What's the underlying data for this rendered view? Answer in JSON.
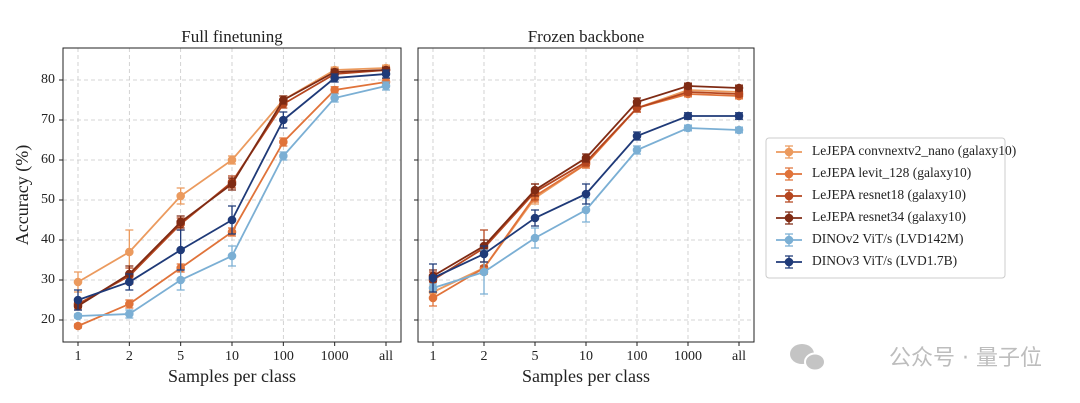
{
  "chart_data": [
    {
      "type": "line",
      "title": "Full finetuning",
      "xlabel": "Samples per class",
      "ylabel": "Accuracy (%)",
      "categories": [
        "1",
        "2",
        "5",
        "10",
        "100",
        "1000",
        "all"
      ],
      "ylim": [
        14.5,
        88
      ],
      "yticks": [
        20,
        30,
        40,
        50,
        60,
        70,
        80
      ],
      "grid": true,
      "series": [
        {
          "name": "LeJEPA convnextv2_nano (galaxy10)",
          "color": "#eb9a5e",
          "values": [
            29.5,
            37,
            51,
            60,
            75,
            82.5,
            83
          ],
          "errors": [
            2.5,
            5.5,
            2,
            1,
            1,
            0.7,
            0.7
          ]
        },
        {
          "name": "LeJEPA levit_128 (galaxy10)",
          "color": "#e0733a",
          "values": [
            18.5,
            24,
            33,
            42,
            64.5,
            77.5,
            79.5
          ],
          "errors": [
            0.5,
            1,
            1,
            1,
            1,
            0.8,
            0.8
          ]
        },
        {
          "name": "LeJEPA resnet18 (galaxy10)",
          "color": "#b5461f",
          "values": [
            24,
            31,
            44,
            54.5,
            74,
            81.5,
            82.5
          ],
          "errors": [
            1,
            2,
            1.5,
            1.5,
            1,
            0.7,
            0.7
          ]
        },
        {
          "name": "LeJEPA resnet34 (galaxy10)",
          "color": "#7f2b14",
          "values": [
            23.5,
            31.5,
            44.5,
            54,
            75,
            82,
            82.5
          ],
          "errors": [
            1,
            2,
            1.5,
            1.5,
            1,
            0.7,
            0.7
          ]
        },
        {
          "name": "DINOv2 ViT/s (LVD142M)",
          "color": "#7bafd4",
          "values": [
            21,
            21.5,
            30,
            36,
            61,
            75.5,
            78.5
          ],
          "errors": [
            0.5,
            1,
            2.5,
            2.5,
            1,
            1,
            1
          ]
        },
        {
          "name": "DINOv3 ViT/s (LVD1.7B)",
          "color": "#1f3a78",
          "values": [
            25,
            29.5,
            37.5,
            45,
            70,
            80.5,
            81.5
          ],
          "errors": [
            2.5,
            2,
            5,
            3.5,
            2,
            1,
            1
          ]
        }
      ]
    },
    {
      "type": "line",
      "title": "Frozen backbone",
      "xlabel": "Samples per class",
      "sharey": true,
      "categories": [
        "1",
        "2",
        "5",
        "10",
        "100",
        "1000",
        "all"
      ],
      "grid": true,
      "series": [
        {
          "name": "LeJEPA convnextv2_nano (galaxy10)",
          "color": "#eb9a5e",
          "values": [
            27,
            33,
            50.5,
            59,
            73,
            77.5,
            77
          ],
          "errors": [
            1.5,
            1.5,
            1.5,
            1,
            1,
            0.7,
            0.7
          ]
        },
        {
          "name": "LeJEPA levit_128 (galaxy10)",
          "color": "#e0733a",
          "values": [
            25.5,
            33,
            51,
            59,
            73,
            76.5,
            76
          ],
          "errors": [
            2,
            1.5,
            1.5,
            1,
            1,
            0.7,
            0.7
          ]
        },
        {
          "name": "LeJEPA resnet18 (galaxy10)",
          "color": "#b5461f",
          "values": [
            30,
            38,
            52,
            59.5,
            73,
            77,
            76.5
          ],
          "errors": [
            2,
            4.5,
            2,
            1,
            1,
            0.7,
            0.7
          ]
        },
        {
          "name": "LeJEPA resnet34 (galaxy10)",
          "color": "#7f2b14",
          "values": [
            31,
            38.5,
            52.5,
            60.5,
            74.5,
            78.5,
            78
          ],
          "errors": [
            1.5,
            1.5,
            1.5,
            1,
            1,
            0.7,
            0.7
          ]
        },
        {
          "name": "DINOv2 ViT/s (LVD142M)",
          "color": "#7bafd4",
          "values": [
            28,
            32,
            40.5,
            47.5,
            62.5,
            68,
            67.5
          ],
          "errors": [
            1,
            5.5,
            2.5,
            3,
            1,
            0.7,
            0.7
          ]
        },
        {
          "name": "DINOv3 ViT/s (LVD1.7B)",
          "color": "#1f3a78",
          "values": [
            30.5,
            36.5,
            45.5,
            51.5,
            66,
            71,
            71
          ],
          "errors": [
            3.5,
            2,
            2,
            2.5,
            1,
            0.8,
            0.8
          ]
        }
      ]
    }
  ],
  "watermark": "公众号 · 量子位"
}
